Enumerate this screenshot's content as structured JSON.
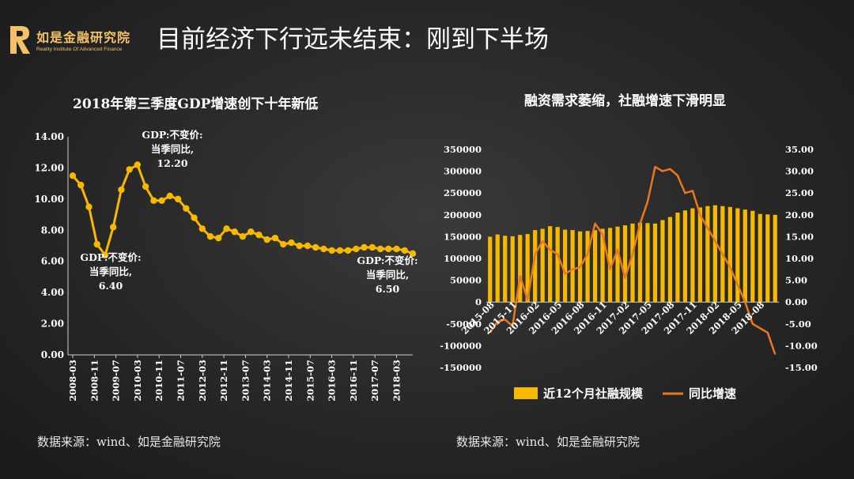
{
  "header": {
    "logo_cn": "如是金融研究院",
    "logo_en": "Reality Institute Of Advanced Finance",
    "title": "目前经济下行远未结束：刚到下半场"
  },
  "colors": {
    "accent": "#f7b800",
    "line_orange": "#e8781e",
    "logo_gold": "#f2c265"
  },
  "left": {
    "title": "2018年第三季度GDP增速创下十年新低",
    "source": "数据来源：wind、如是金融研究院"
  },
  "right": {
    "title": "融资需求萎缩，社融增速下滑明显",
    "source": "数据来源：wind、如是金融研究院"
  },
  "chart_data": [
    {
      "type": "line",
      "title": "2018年第三季度GDP增速创下十年新低",
      "ylim": [
        0,
        14
      ],
      "y_ticks": [
        "0.00",
        "2.00",
        "4.00",
        "6.00",
        "8.00",
        "10.00",
        "12.00",
        "14.00"
      ],
      "x_tick_labels": [
        "2008-03",
        "2008-11",
        "2009-07",
        "2010-03",
        "2010-11",
        "2011-07",
        "2012-03",
        "2012-11",
        "2013-07",
        "2014-03",
        "2014-11",
        "2015-07",
        "2016-03",
        "2016-11",
        "2017-07",
        "2018-03"
      ],
      "x": [
        "2008-03",
        "2008-06",
        "2008-09",
        "2008-12",
        "2009-03",
        "2009-06",
        "2009-09",
        "2009-12",
        "2010-03",
        "2010-06",
        "2010-09",
        "2010-12",
        "2011-03",
        "2011-06",
        "2011-09",
        "2011-12",
        "2012-03",
        "2012-06",
        "2012-09",
        "2012-12",
        "2013-03",
        "2013-06",
        "2013-09",
        "2013-12",
        "2014-03",
        "2014-06",
        "2014-09",
        "2014-12",
        "2015-03",
        "2015-06",
        "2015-09",
        "2015-12",
        "2016-03",
        "2016-06",
        "2016-09",
        "2016-12",
        "2017-03",
        "2017-06",
        "2017-09",
        "2017-12",
        "2018-03",
        "2018-06",
        "2018-09"
      ],
      "series": [
        {
          "values": [
            11.5,
            10.9,
            9.5,
            7.1,
            6.4,
            8.2,
            10.6,
            11.9,
            12.2,
            10.8,
            9.9,
            9.9,
            10.2,
            10.0,
            9.4,
            8.8,
            8.1,
            7.6,
            7.5,
            8.1,
            7.9,
            7.6,
            7.9,
            7.7,
            7.4,
            7.5,
            7.1,
            7.2,
            7.0,
            7.0,
            6.9,
            6.8,
            6.7,
            6.7,
            6.7,
            6.8,
            6.9,
            6.9,
            6.8,
            6.8,
            6.8,
            6.7,
            6.5
          ]
        }
      ],
      "annotations": [
        {
          "lines": [
            "GDP:不变价:",
            "当季同比,",
            "12.20"
          ]
        },
        {
          "lines": [
            "GDP:不变价:",
            "当季同比,",
            "6.40"
          ]
        },
        {
          "lines": [
            "GDP:不变价:",
            "当季同比,",
            "6.50"
          ]
        }
      ],
      "grid": false
    },
    {
      "type": "bar+line",
      "title": "融资需求萎缩，社融增速下滑明显",
      "ylim_left": [
        -150000,
        350000
      ],
      "ylim_right": [
        -15,
        35
      ],
      "y_ticks_left": [
        "350000",
        "300000",
        "250000",
        "200000",
        "150000",
        "100000",
        "50000",
        "0",
        "-50000",
        "-100000",
        "-150000"
      ],
      "y_ticks_right": [
        "35.00",
        "30.00",
        "25.00",
        "20.00",
        "15.00",
        "10.00",
        "5.00",
        "0.00",
        "-5.00",
        "-10.00",
        "-15.00"
      ],
      "x_tick_labels": [
        "2015-08",
        "2015-11",
        "2016-02",
        "2016-05",
        "2016-08",
        "2016-11",
        "2017-02",
        "2017-05",
        "2017-08",
        "2017-11",
        "2018-02",
        "2018-05",
        "2018-08"
      ],
      "x": [
        "2015-08",
        "2015-09",
        "2015-10",
        "2015-11",
        "2015-12",
        "2016-01",
        "2016-02",
        "2016-03",
        "2016-04",
        "2016-05",
        "2016-06",
        "2016-07",
        "2016-08",
        "2016-09",
        "2016-10",
        "2016-11",
        "2016-12",
        "2017-01",
        "2017-02",
        "2017-03",
        "2017-04",
        "2017-05",
        "2017-06",
        "2017-07",
        "2017-08",
        "2017-09",
        "2017-10",
        "2017-11",
        "2017-12",
        "2018-01",
        "2018-02",
        "2018-03",
        "2018-04",
        "2018-05",
        "2018-06",
        "2018-07",
        "2018-08",
        "2018-09",
        "2018-10"
      ],
      "series": [
        {
          "name": "近12个月社融规模",
          "kind": "bar",
          "axis": "left",
          "values": [
            150000,
            155000,
            152000,
            151000,
            154000,
            156000,
            165000,
            168000,
            174000,
            172000,
            166000,
            165000,
            162000,
            163000,
            165000,
            168000,
            170000,
            173000,
            176000,
            180000,
            182000,
            181000,
            180000,
            188000,
            195000,
            205000,
            210000,
            215000,
            217000,
            220000,
            222000,
            220000,
            218000,
            215000,
            212000,
            209000,
            202000,
            201000,
            200000
          ]
        },
        {
          "name": "同比增速",
          "kind": "line",
          "axis": "right",
          "values": [
            -7,
            -4.5,
            -4,
            -5.5,
            6,
            0.5,
            11,
            14,
            12,
            11,
            6.5,
            7.5,
            8,
            11,
            18,
            15.5,
            7.5,
            12,
            5.5,
            11,
            18,
            23,
            31,
            30,
            30.5,
            29,
            25,
            25.5,
            20,
            17,
            14,
            11,
            8,
            4,
            0,
            -5,
            -6,
            -7,
            -12
          ]
        }
      ],
      "grid": false
    }
  ]
}
